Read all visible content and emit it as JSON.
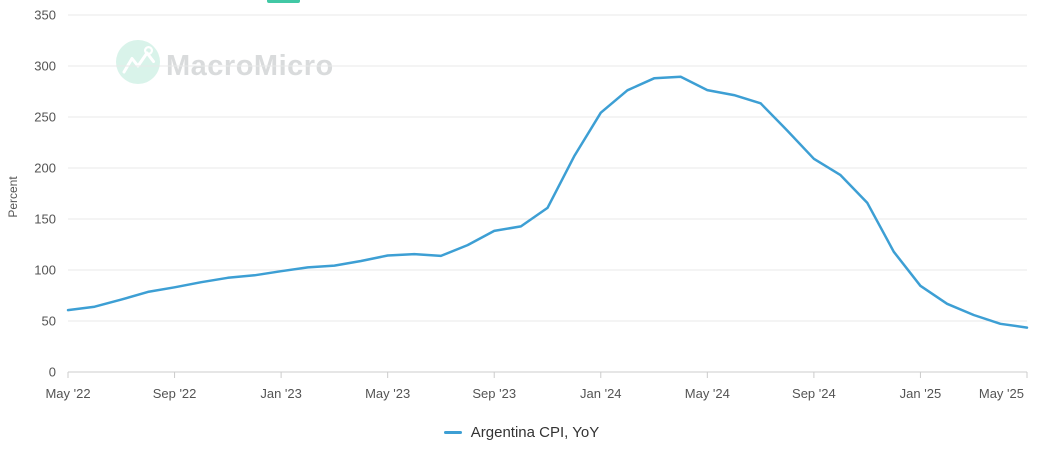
{
  "top_tab_indicator": {
    "color": "#41c8a5"
  },
  "watermark": {
    "brand": "MacroMicro",
    "icon": "macromicro-zigzag-logo",
    "circle_color": "#d9f3ea",
    "text_color": "#d9dbdc"
  },
  "chart_data": {
    "type": "line",
    "title": "",
    "xlabel": "",
    "ylabel": "Percent",
    "grid": true,
    "ylim": [
      0,
      350
    ],
    "y_ticks": [
      0,
      50,
      100,
      150,
      200,
      250,
      300,
      350
    ],
    "x_months": [
      "2022-05",
      "2022-06",
      "2022-07",
      "2022-08",
      "2022-09",
      "2022-10",
      "2022-11",
      "2022-12",
      "2023-01",
      "2023-02",
      "2023-03",
      "2023-04",
      "2023-05",
      "2023-06",
      "2023-07",
      "2023-08",
      "2023-09",
      "2023-10",
      "2023-11",
      "2023-12",
      "2024-01",
      "2024-02",
      "2024-03",
      "2024-04",
      "2024-05",
      "2024-06",
      "2024-07",
      "2024-08",
      "2024-09",
      "2024-10",
      "2024-11",
      "2024-12",
      "2025-01",
      "2025-02",
      "2025-03",
      "2025-04",
      "2025-05"
    ],
    "x_tick_indices": [
      0,
      4,
      8,
      12,
      16,
      20,
      24,
      28,
      32,
      36
    ],
    "x_tick_labels": [
      "May '22",
      "Sep '22",
      "Jan '23",
      "May '23",
      "Sep '23",
      "Jan '24",
      "May '24",
      "Sep '24",
      "Jan '25",
      "May '25"
    ],
    "series": [
      {
        "name": "Argentina CPI, YoY",
        "color": "#3d9fd4",
        "values": [
          60.7,
          64.0,
          71.0,
          78.5,
          83.0,
          88.0,
          92.4,
          94.8,
          98.8,
          102.5,
          104.3,
          108.8,
          114.2,
          115.6,
          113.8,
          124.4,
          138.3,
          142.7,
          160.9,
          211.4,
          254.2,
          276.2,
          287.9,
          289.4,
          276.4,
          271.5,
          263.4,
          236.7,
          209.0,
          193.0,
          166.0,
          117.8,
          84.5,
          66.9,
          55.9,
          47.3,
          43.5
        ]
      }
    ],
    "legend_position": "bottom-center",
    "axis_color": "#cccccc",
    "gridline_color": "#e8e8e8",
    "tick_label_color": "#545454"
  }
}
